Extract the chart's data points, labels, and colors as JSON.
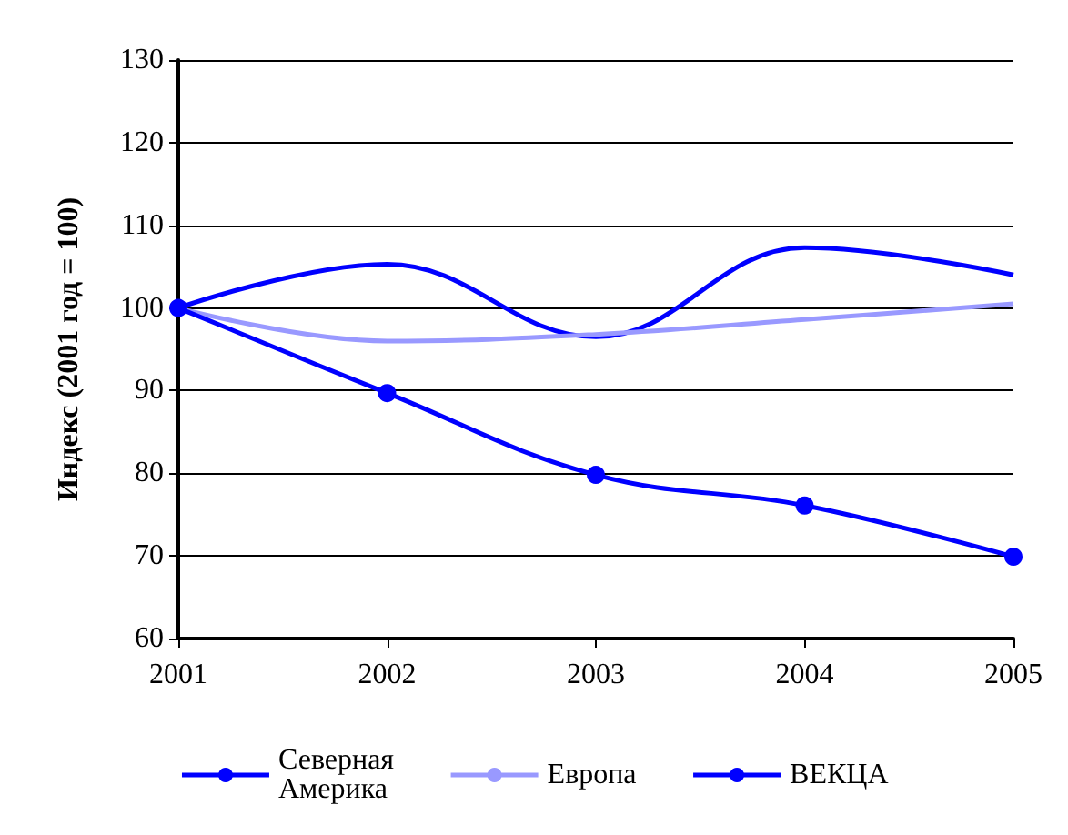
{
  "chart_data": {
    "type": "line",
    "ylabel": "Индекс (2001 год = 100)",
    "categories": [
      "2001",
      "2002",
      "2003",
      "2004",
      "2005"
    ],
    "series": [
      {
        "name": "Северная\nАмерика",
        "color": "#0000ff",
        "marker": "none",
        "values": [
          100,
          105.3,
          96.5,
          107.3,
          104
        ]
      },
      {
        "name": "Европа",
        "color": "#9999ff",
        "marker": "none",
        "values": [
          100,
          96,
          96.8,
          98.6,
          100.5
        ]
      },
      {
        "name": "ВЕКЦА",
        "color": "#0000ff",
        "marker": "circle",
        "values": [
          100,
          89.7,
          79.8,
          76.1,
          69.9
        ]
      }
    ],
    "ylim": [
      60,
      130
    ],
    "yticks": [
      60,
      70,
      80,
      90,
      100,
      110,
      120,
      130
    ],
    "grid": "y",
    "legend": "bottom"
  }
}
